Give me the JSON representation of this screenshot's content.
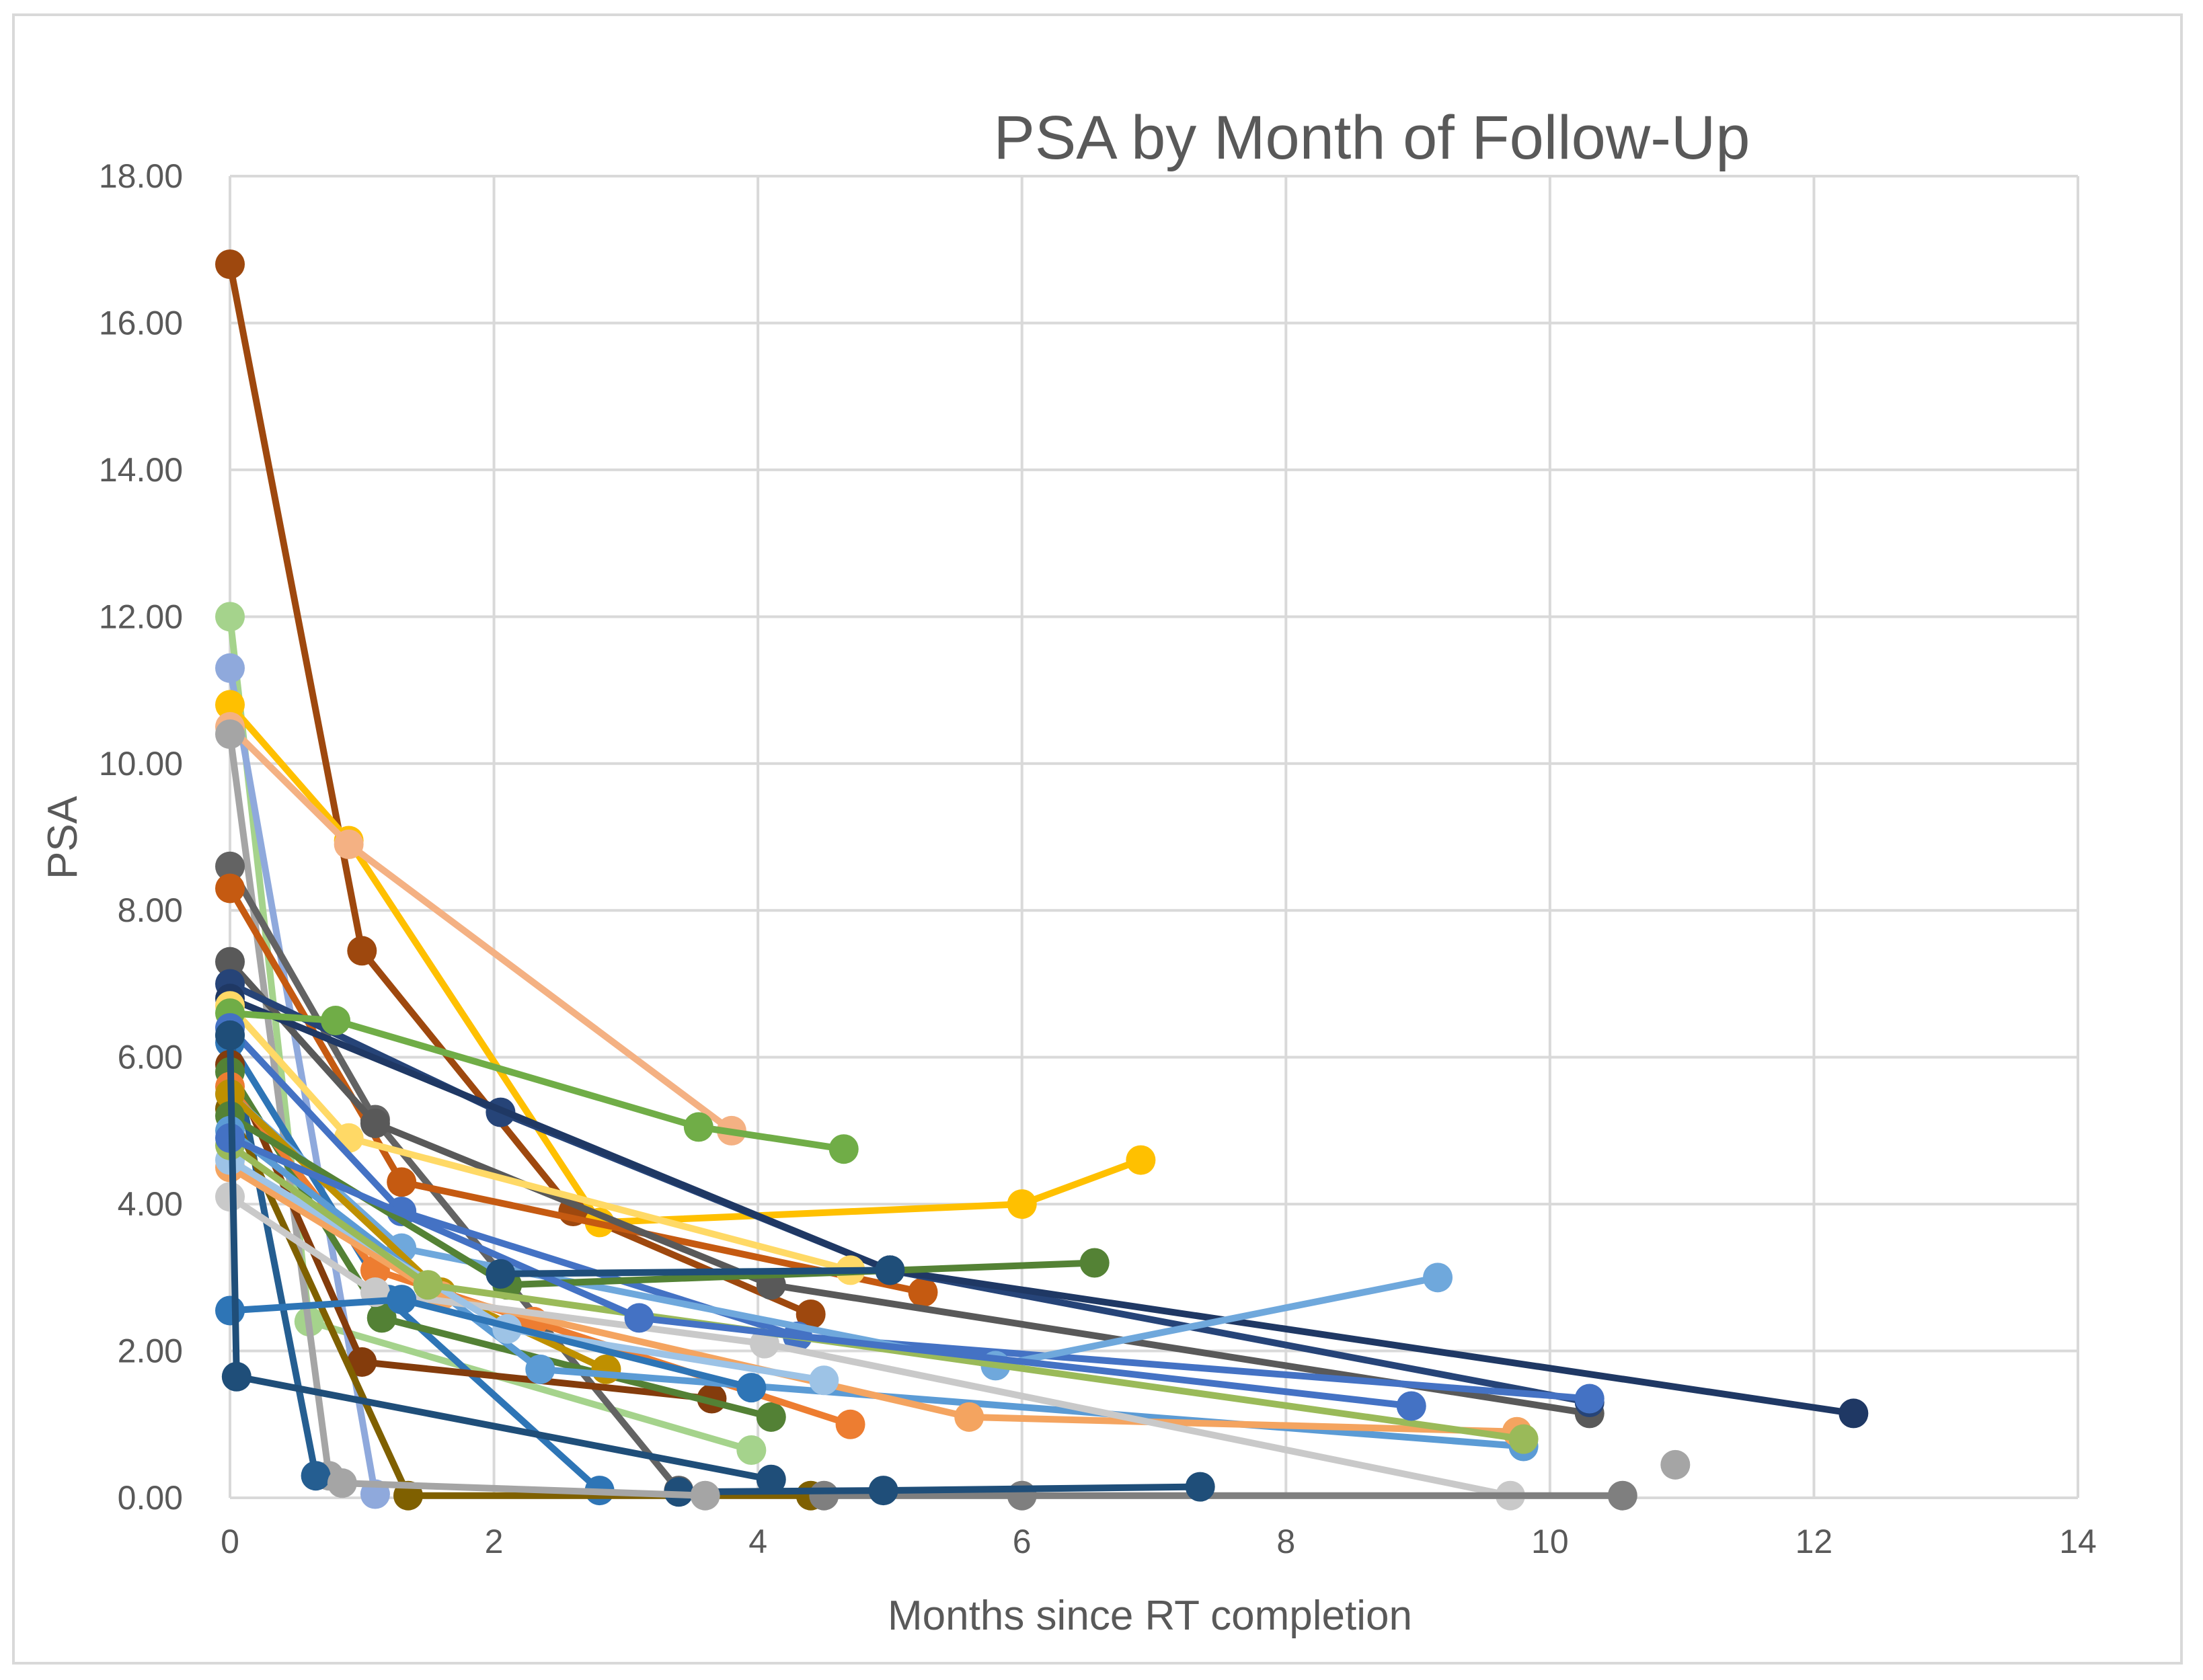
{
  "chart_data": {
    "type": "scatter",
    "title": "PSA by Month of Follow-Up",
    "xlabel": "Months since RT completion",
    "ylabel": "PSA",
    "xlim": [
      0,
      14
    ],
    "ylim": [
      0,
      18
    ],
    "x_ticks": [
      "0",
      "2",
      "4",
      "6",
      "8",
      "10",
      "12",
      "14"
    ],
    "y_ticks": [
      "0.00",
      "2.00",
      "4.00",
      "6.00",
      "8.00",
      "10.00",
      "12.00",
      "14.00",
      "16.00",
      "18.00"
    ],
    "grid": true,
    "legend": "none",
    "line_style": "straight lines with circular markers",
    "series": [
      {
        "color": "#9e480e",
        "points": [
          [
            0,
            16.8
          ],
          [
            1.0,
            7.45
          ],
          [
            2.6,
            3.9
          ],
          [
            4.4,
            2.5
          ]
        ]
      },
      {
        "color": "#a5d38c",
        "points": [
          [
            0,
            12.0
          ],
          [
            0.6,
            2.4
          ],
          [
            3.95,
            0.65
          ]
        ]
      },
      {
        "color": "#8fa9dc",
        "points": [
          [
            0,
            11.3
          ],
          [
            1.1,
            0.05
          ]
        ]
      },
      {
        "color": "#ffc000",
        "points": [
          [
            0,
            10.8
          ],
          [
            0.9,
            8.95
          ],
          [
            2.8,
            3.75
          ],
          [
            6.0,
            4.0
          ],
          [
            6.9,
            4.6
          ]
        ]
      },
      {
        "color": "#f4b183",
        "points": [
          [
            0,
            10.5
          ],
          [
            0.9,
            8.9
          ],
          [
            3.8,
            5.0
          ]
        ]
      },
      {
        "color": "#a5a5a5",
        "points": [
          [
            0,
            10.4
          ],
          [
            0.75,
            0.3
          ]
        ]
      },
      {
        "color": "#636363",
        "points": [
          [
            0,
            8.6
          ],
          [
            1.1,
            5.15
          ],
          [
            3.4,
            0.1
          ]
        ]
      },
      {
        "color": "#c55a11",
        "points": [
          [
            0,
            8.3
          ],
          [
            1.3,
            4.3
          ],
          [
            5.25,
            2.8
          ]
        ]
      },
      {
        "color": "#595959",
        "points": [
          [
            0,
            7.3
          ],
          [
            1.1,
            5.1
          ],
          [
            4.1,
            2.9
          ],
          [
            10.3,
            1.15
          ]
        ]
      },
      {
        "color": "#264478",
        "points": [
          [
            0,
            7.0
          ],
          [
            2.05,
            5.25
          ],
          [
            5.0,
            3.1
          ],
          [
            10.3,
            1.3
          ]
        ]
      },
      {
        "color": "#1f3864",
        "points": [
          [
            0,
            6.8
          ],
          [
            5.0,
            3.1
          ],
          [
            12.3,
            1.15
          ]
        ]
      },
      {
        "color": "#ffd966",
        "points": [
          [
            0,
            6.7
          ],
          [
            0.9,
            4.9
          ],
          [
            4.7,
            3.1
          ]
        ]
      },
      {
        "color": "#70ad47",
        "points": [
          [
            0,
            6.6
          ],
          [
            0.8,
            6.5
          ],
          [
            3.55,
            5.05
          ],
          [
            4.65,
            4.75
          ]
        ]
      },
      {
        "color": "#4472c4",
        "points": [
          [
            0,
            6.4
          ],
          [
            1.3,
            3.9
          ],
          [
            4.3,
            2.2
          ],
          [
            10.3,
            1.35
          ]
        ]
      },
      {
        "color": "#2e75b6",
        "points": [
          [
            0,
            6.2
          ],
          [
            1.2,
            2.7
          ],
          [
            2.8,
            0.1
          ]
        ]
      },
      {
        "color": "#255e91",
        "points": [
          [
            0,
            6.3
          ],
          [
            0.65,
            0.3
          ]
        ]
      },
      {
        "color": "#843c0c",
        "points": [
          [
            0,
            5.9
          ],
          [
            1.0,
            1.85
          ],
          [
            3.65,
            1.35
          ]
        ]
      },
      {
        "color": "#538135",
        "points": [
          [
            0,
            5.8
          ],
          [
            1.15,
            2.45
          ],
          [
            4.1,
            1.1
          ]
        ]
      },
      {
        "color": "#ed7d31",
        "points": [
          [
            0,
            5.6
          ],
          [
            1.1,
            3.1
          ],
          [
            2.3,
            2.4
          ],
          [
            4.7,
            1.0
          ]
        ]
      },
      {
        "color": "#6fa8dc",
        "points": [
          [
            0,
            5.5
          ],
          [
            1.3,
            3.4
          ],
          [
            5.8,
            1.8
          ],
          [
            9.15,
            3.0
          ]
        ]
      },
      {
        "color": "#7f6000",
        "points": [
          [
            0,
            5.3
          ],
          [
            1.35,
            0.03
          ],
          [
            4.4,
            0.03
          ]
        ]
      },
      {
        "color": "#bf9000",
        "points": [
          [
            0,
            5.5
          ],
          [
            1.6,
            2.8
          ],
          [
            2.85,
            1.75
          ]
        ]
      },
      {
        "color": "#548235",
        "points": [
          [
            0,
            5.2
          ],
          [
            2.1,
            2.9
          ],
          [
            6.55,
            3.2
          ]
        ]
      },
      {
        "color": "#5b9bd5",
        "points": [
          [
            0,
            5.0
          ],
          [
            2.35,
            1.75
          ],
          [
            9.8,
            0.7
          ]
        ]
      },
      {
        "color": "#f4a460",
        "points": [
          [
            0,
            4.5
          ],
          [
            1.6,
            2.75
          ],
          [
            5.6,
            1.1
          ],
          [
            9.75,
            0.9
          ]
        ]
      },
      {
        "color": "#c9c9c9",
        "points": [
          [
            0,
            4.1
          ],
          [
            1.1,
            2.8
          ],
          [
            4.05,
            2.1
          ],
          [
            9.7,
            0.03
          ]
        ]
      },
      {
        "color": "#9dc3e6",
        "points": [
          [
            0,
            4.6
          ],
          [
            2.1,
            2.3
          ],
          [
            4.5,
            1.6
          ]
        ]
      },
      {
        "color": "#9aba59",
        "points": [
          [
            0,
            4.8
          ],
          [
            1.5,
            2.9
          ],
          [
            9.8,
            0.8
          ]
        ]
      },
      {
        "color": "#2e75b6",
        "points": [
          [
            0,
            2.55
          ],
          [
            1.3,
            2.7
          ],
          [
            3.95,
            1.5
          ]
        ]
      },
      {
        "color": "#4472c4",
        "points": [
          [
            0,
            4.9
          ],
          [
            3.1,
            2.45
          ],
          [
            8.95,
            1.25
          ]
        ]
      },
      {
        "color": "#1f4e79",
        "points": [
          [
            0,
            6.3
          ],
          [
            0.05,
            1.65
          ],
          [
            4.1,
            0.25
          ]
        ]
      },
      {
        "color": "#1f4e79",
        "points": [
          [
            2.05,
            3.05
          ],
          [
            5.0,
            3.1
          ]
        ]
      },
      {
        "color": "#7f7f7f",
        "points": [
          [
            4.5,
            0.03
          ],
          [
            6.0,
            0.03
          ],
          [
            10.55,
            0.03
          ]
        ]
      },
      {
        "color": "#1f4e79",
        "points": [
          [
            3.4,
            0.08
          ],
          [
            4.95,
            0.1
          ],
          [
            7.35,
            0.15
          ]
        ]
      },
      {
        "color": "#a5a5a5",
        "points": [
          [
            0.85,
            0.2
          ],
          [
            3.6,
            0.03
          ]
        ]
      },
      {
        "color": "#a5a5a5",
        "points": [
          [
            10.95,
            0.45
          ]
        ]
      }
    ]
  }
}
